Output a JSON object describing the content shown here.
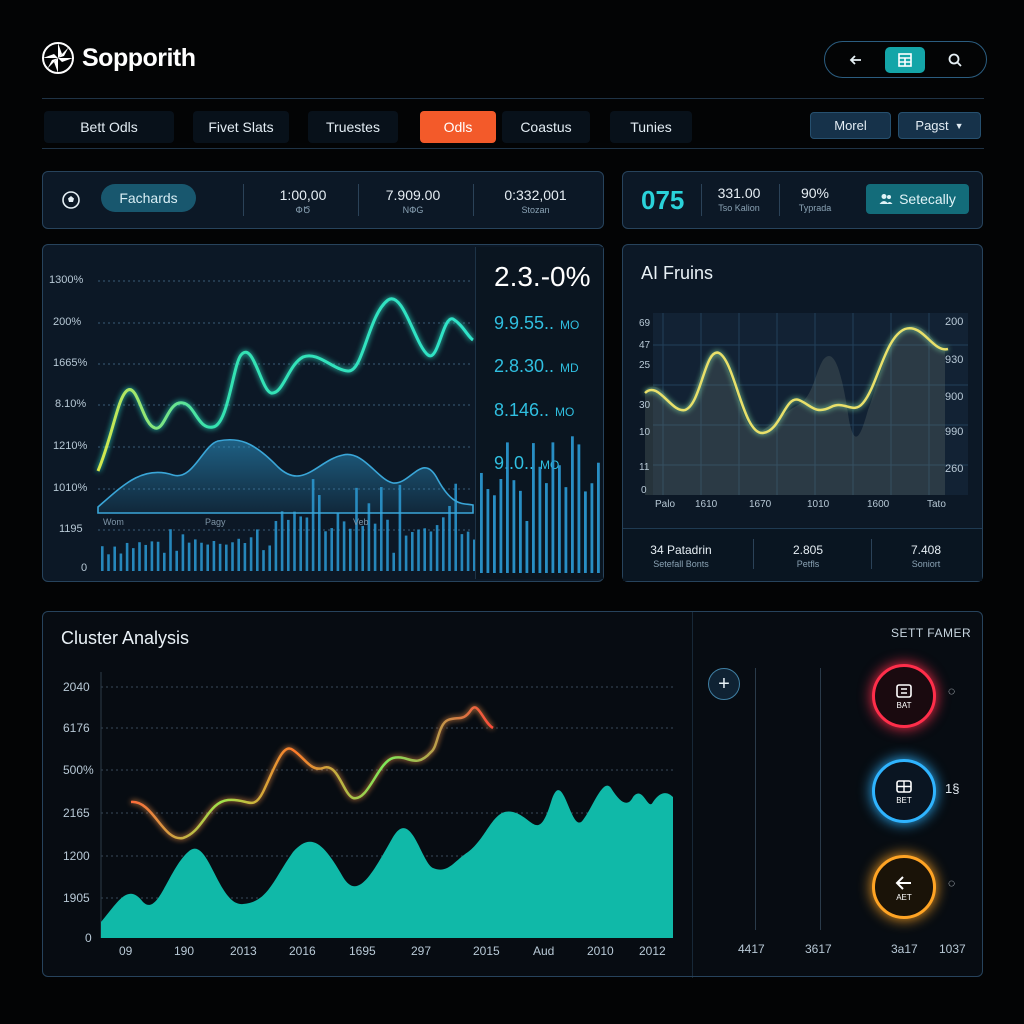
{
  "header": {
    "app_title": "Sopporith"
  },
  "tabs": [
    {
      "label": "Bett Odls"
    },
    {
      "label": "Fivet Slats"
    },
    {
      "label": "Truestes"
    },
    {
      "label": "Odls"
    },
    {
      "label": "Coastus"
    },
    {
      "label": "Tunies"
    }
  ],
  "right_buttons": {
    "morel": "Morel",
    "pagst": "Pagst"
  },
  "stats_bar_left": {
    "pill_label": "Fachards",
    "stats": [
      {
        "value": "1:00,00",
        "label": "ՓԾ"
      },
      {
        "value": "7.909.00",
        "label": "NՓG"
      },
      {
        "value": "0:332,001",
        "label": "Stozan"
      }
    ]
  },
  "stats_bar_right": {
    "big_value": "075",
    "stats": [
      {
        "value": "331.00",
        "label": "Tso Kalion"
      },
      {
        "value": "90%",
        "label": "Typrada"
      }
    ],
    "button_label": "Setecally"
  },
  "main_chart": {
    "y_labels": [
      "1300%",
      "200%",
      "1665%",
      "8.10%",
      "1210%",
      "1010%",
      "1195",
      "0"
    ],
    "x_labels": [
      "Wom",
      "Pagy",
      "Veb"
    ],
    "overlay_title": "2.3.-0%",
    "overlay_values": [
      {
        "value": "9.9.55..",
        "unit": "MO"
      },
      {
        "value": "2.8.30..",
        "unit": "MD"
      },
      {
        "value": "8.146..",
        "unit": "MO"
      },
      {
        "value": "9..0..",
        "unit": "MO"
      }
    ]
  },
  "ai_panel": {
    "title": "AI Fruins",
    "left_y_labels": [
      "69",
      "47",
      "25",
      "30",
      "10",
      "11",
      "0"
    ],
    "right_y_labels": [
      "200",
      "930",
      "900",
      "990",
      "260"
    ],
    "x_labels": [
      "Palo",
      "1610",
      "1670",
      "1010",
      "1600",
      "Tato"
    ],
    "footer": [
      {
        "value": "34 Patadrin",
        "label": "Setefall Bonts"
      },
      {
        "value": "2.805",
        "label": "Petfls"
      },
      {
        "value": "7.408",
        "label": "Soniort"
      }
    ]
  },
  "cluster": {
    "title": "Cluster Analysis",
    "y_labels": [
      "2040",
      "6176",
      "500%",
      "2165",
      "1200",
      "1905",
      "0"
    ],
    "x_labels": [
      "09",
      "190",
      "2013",
      "2016",
      "1695",
      "297",
      "2015",
      "Aud",
      "2010",
      "2012"
    ]
  },
  "bet_panel": {
    "title": "SETT FAMER",
    "rings": [
      {
        "label": "BAT",
        "side": "◌"
      },
      {
        "label": "BET",
        "side": "1§"
      },
      {
        "label": "AET",
        "side": "◌"
      }
    ],
    "bottom_values": [
      "4417",
      "3617",
      "3a17",
      "1037"
    ],
    "colors": {
      "red": "#ff2e4a",
      "blue": "#2fb4ff",
      "orange": "#ffa424"
    }
  }
}
